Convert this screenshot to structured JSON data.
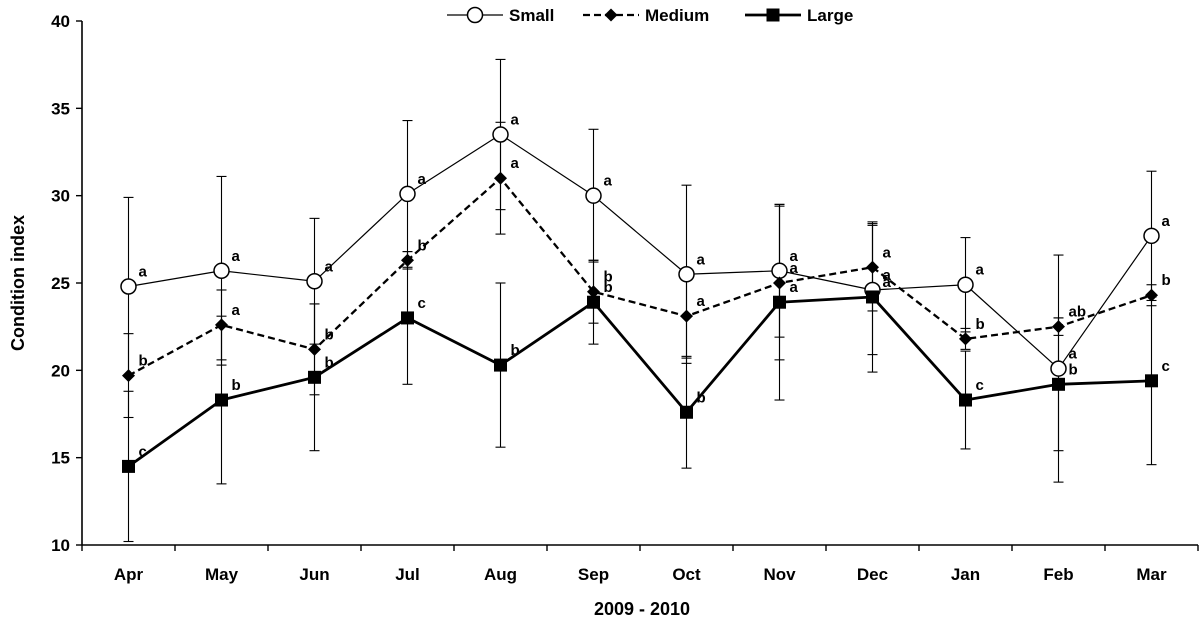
{
  "chart_data": {
    "type": "line",
    "title": "",
    "xlabel": "2009 - 2010",
    "ylabel": "Condition index",
    "ylim": [
      10,
      40
    ],
    "yticks": [
      10,
      15,
      20,
      25,
      30,
      35,
      40
    ],
    "categories": [
      "Apr",
      "May",
      "Jun",
      "Jul",
      "Aug",
      "Sep",
      "Oct",
      "Nov",
      "Dec",
      "Jan",
      "Feb",
      "Mar"
    ],
    "grid": false,
    "legend_position": "top-center",
    "series": [
      {
        "name": "Small",
        "line_style": "solid",
        "marker": "open-circle",
        "color": "#000000",
        "values": [
          24.8,
          25.7,
          25.1,
          30.1,
          33.5,
          30.0,
          25.5,
          25.7,
          24.6,
          24.9,
          20.1,
          27.7
        ],
        "error": [
          5.1,
          5.4,
          3.6,
          4.2,
          4.3,
          3.8,
          5.1,
          3.8,
          3.7,
          2.7,
          6.5,
          3.7
        ],
        "labels": [
          "a",
          "a",
          "a",
          "a",
          "a",
          "a",
          "a",
          "a",
          "a",
          "a",
          "a",
          "a"
        ]
      },
      {
        "name": "Medium",
        "line_style": "dashed",
        "marker": "filled-diamond",
        "color": "#000000",
        "values": [
          19.7,
          22.6,
          21.2,
          26.3,
          31.0,
          24.5,
          23.1,
          25.0,
          25.9,
          21.8,
          22.5,
          24.3
        ],
        "error": [
          2.4,
          2.0,
          2.6,
          0.5,
          3.2,
          1.8,
          2.4,
          4.4,
          2.5,
          0.6,
          0.5,
          0.6
        ],
        "labels": [
          "b",
          "a",
          "b",
          "b",
          "a",
          "b",
          "a",
          "a",
          "a",
          "b",
          "ab",
          "b"
        ]
      },
      {
        "name": "Large",
        "line_style": "solid",
        "marker": "filled-square",
        "color": "#000000",
        "values": [
          14.5,
          18.3,
          19.6,
          23.0,
          20.3,
          23.9,
          17.6,
          23.9,
          24.2,
          18.3,
          19.2,
          19.4
        ],
        "error": [
          4.3,
          4.8,
          4.2,
          3.8,
          4.7,
          2.4,
          3.2,
          5.6,
          4.3,
          2.8,
          3.8,
          4.8
        ],
        "labels": [
          "c",
          "b",
          "b",
          "c",
          "b",
          "b",
          "b",
          "a",
          "a",
          "c",
          "b",
          "c"
        ]
      }
    ]
  }
}
